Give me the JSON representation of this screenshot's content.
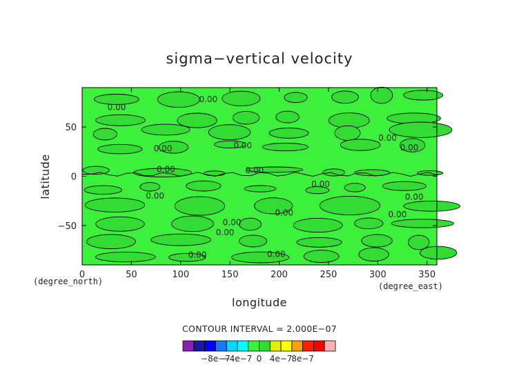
{
  "chart_data": {
    "type": "contour",
    "title": "sigma−vertical velocity",
    "xlabel": "longitude",
    "ylabel": "latitude",
    "x_unit": "(degree_east)",
    "y_unit": "(degree_north)",
    "xlim": [
      0,
      360
    ],
    "ylim": [
      -90,
      90
    ],
    "x_ticks": [
      0,
      50,
      100,
      150,
      200,
      250,
      300,
      350
    ],
    "y_ticks": [
      -50,
      0,
      50
    ],
    "x_tick_labels": [
      "0",
      "50",
      "100",
      "150",
      "200",
      "250",
      "300",
      "350"
    ],
    "y_tick_labels": [
      "−50",
      "0",
      "50"
    ],
    "contour_interval_text": "CONTOUR INTERVAL = 2.000E−07",
    "contour_labels": [
      {
        "text": "0.00",
        "lon": 128,
        "lat": 78
      },
      {
        "text": "0.00",
        "lon": 35,
        "lat": 70
      },
      {
        "text": "0.00",
        "lon": 82,
        "lat": 28
      },
      {
        "text": "0.00",
        "lon": 163,
        "lat": 31
      },
      {
        "text": "0.00",
        "lon": 310,
        "lat": 39
      },
      {
        "text": "0.00",
        "lon": 332,
        "lat": 29
      },
      {
        "text": "0.00",
        "lon": 85,
        "lat": 7
      },
      {
        "text": "0.00",
        "lon": 175,
        "lat": 6
      },
      {
        "text": "0.00",
        "lon": 242,
        "lat": -8
      },
      {
        "text": "0.00",
        "lon": 74,
        "lat": -20
      },
      {
        "text": "0.00",
        "lon": 337,
        "lat": -21
      },
      {
        "text": "0.00",
        "lon": 205,
        "lat": -37
      },
      {
        "text": "0.00",
        "lon": 320,
        "lat": -39
      },
      {
        "text": "0.00",
        "lon": 152,
        "lat": -47
      },
      {
        "text": "0.00",
        "lon": 145,
        "lat": -57
      },
      {
        "text": "0.00",
        "lon": 117,
        "lat": -80
      },
      {
        "text": "0.00",
        "lon": 197,
        "lat": -79
      }
    ],
    "colorbar": {
      "colors": [
        "#8a1fb4",
        "#1818a0",
        "#0000ff",
        "#1a78ff",
        "#00d8ff",
        "#00ffff",
        "#3cf03c",
        "#32dc32",
        "#e0f000",
        "#ffff00",
        "#ffa000",
        "#ff2000",
        "#ff0000",
        "#ffb0b0"
      ],
      "tick_labels": [
        "−8e−7",
        "−4e−7",
        "0",
        "4e−7",
        "8e−7"
      ],
      "tick_values": [
        -8e-07,
        -4e-07,
        0,
        4e-07,
        8e-07
      ],
      "range": [
        -1.4e-06,
        1.4e-06
      ]
    },
    "field_colors": {
      "positive": "#3cf03c",
      "negative": "#32dc32"
    },
    "grid": false
  }
}
